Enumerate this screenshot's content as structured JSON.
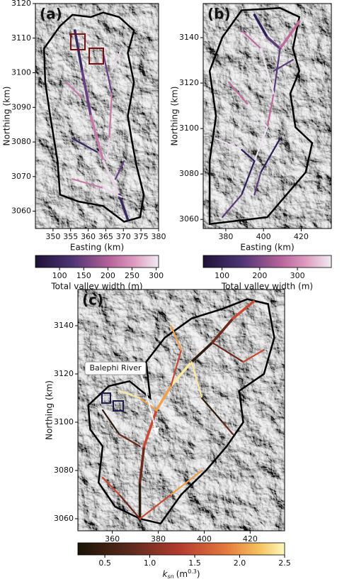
{
  "chart_data": [
    {
      "type": "map",
      "panel_label": "(a)",
      "xlabel": "Easting (km)",
      "ylabel": "Northing (km)",
      "xlim": [
        345,
        380
      ],
      "ylim": [
        3055,
        3120
      ],
      "xticks": [
        350,
        355,
        360,
        365,
        370,
        375,
        380
      ],
      "yticks": [
        3060,
        3070,
        3080,
        3090,
        3100,
        3110,
        3120
      ],
      "colorbar": {
        "label": "Total valley width (m)",
        "lim": [
          50,
          305
        ],
        "ticks": [
          100,
          150,
          200,
          250,
          300
        ]
      }
    },
    {
      "type": "map",
      "panel_label": "(b)",
      "xlabel": "Easting (km)",
      "ylabel": "Northing (km)",
      "xlim": [
        368,
        436
      ],
      "ylim": [
        3056,
        3155
      ],
      "xticks": [
        380,
        400,
        420
      ],
      "yticks": [
        3060,
        3080,
        3100,
        3120,
        3140
      ],
      "colorbar": {
        "label": "Total valley width (m)",
        "lim": [
          50,
          390
        ],
        "ticks": [
          100,
          200,
          300
        ]
      }
    },
    {
      "type": "map",
      "panel_label": "(c)",
      "xlabel": "Easting (km)",
      "ylabel": "Northing (km)",
      "xlim": [
        345,
        435
      ],
      "ylim": [
        3055,
        3155
      ],
      "xticks": [
        360,
        380,
        400,
        420
      ],
      "yticks": [
        3060,
        3080,
        3100,
        3120,
        3140
      ],
      "annotation": "Balephi River",
      "colorbar": {
        "label": {
          "symbol": "k",
          "subscript": "sn",
          "unit": "(m",
          "exponent": "0.3",
          "close": ")"
        },
        "lim": [
          0.2,
          2.5
        ],
        "ticks": [
          0.5,
          {
            "value": 1,
            "label": "1.0"
          },
          1.5,
          {
            "value": 2,
            "label": "2.0"
          },
          2.5
        ]
      }
    }
  ]
}
